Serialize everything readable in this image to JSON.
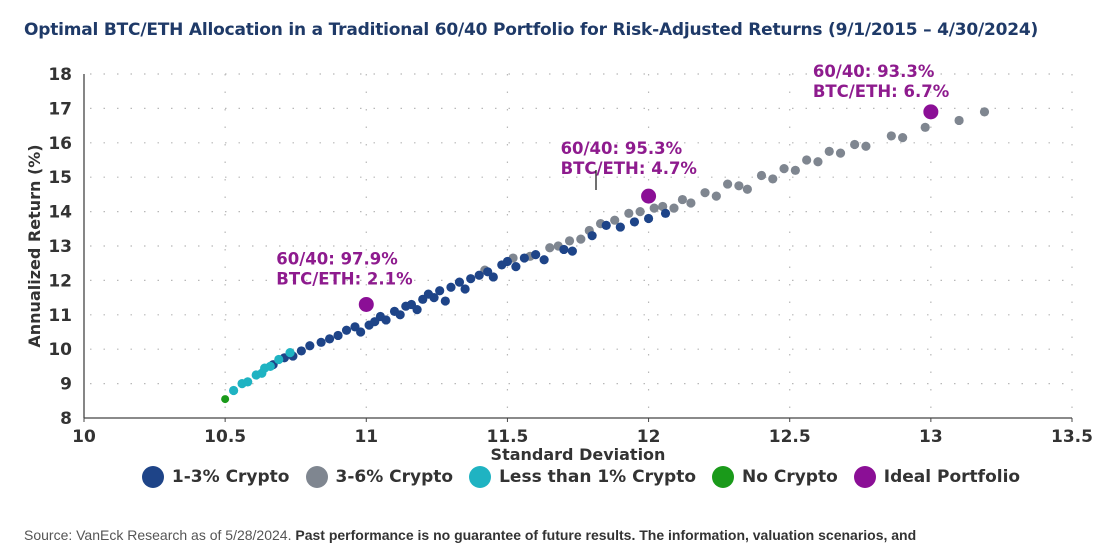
{
  "title": "Optimal BTC/ETH Allocation in a Traditional 60/40 Portfolio for Risk-Adjusted Returns (9/1/2015 – 4/30/2024)",
  "source": {
    "plain": "Source: VanEck Research as of 5/28/2024. ",
    "bold": "Past performance is no guarantee of future results. The information, valuation scenarios, and"
  },
  "chart_data": {
    "type": "scatter",
    "title": "Optimal BTC/ETH Allocation in a Traditional 60/40 Portfolio for Risk-Adjusted Returns (9/1/2015 – 4/30/2024)",
    "xlabel": "Standard Deviation",
    "ylabel": "Annualized Return (%)",
    "xlim": [
      10,
      13.5
    ],
    "ylim": [
      8,
      18
    ],
    "xticks": [
      "10",
      "10.5",
      "11",
      "11.5",
      "12",
      "12.5",
      "13",
      "13.5"
    ],
    "yticks": [
      "8",
      "9",
      "10",
      "11",
      "12",
      "13",
      "14",
      "15",
      "16",
      "17",
      "18"
    ],
    "grid": "dotted",
    "legend_position": "bottom",
    "series": [
      {
        "name": "No Crypto",
        "color": "#1a9a1a",
        "points": [
          [
            10.5,
            8.55
          ]
        ]
      },
      {
        "name": "Less than 1% Crypto",
        "color": "#1fb3c2",
        "points": [
          [
            10.53,
            8.8
          ],
          [
            10.56,
            9.0
          ],
          [
            10.58,
            9.05
          ],
          [
            10.61,
            9.25
          ],
          [
            10.63,
            9.3
          ],
          [
            10.64,
            9.45
          ],
          [
            10.66,
            9.5
          ],
          [
            10.69,
            9.7
          ],
          [
            10.73,
            9.9
          ]
        ]
      },
      {
        "name": "1-3% Crypto",
        "color": "#1e4488",
        "points": [
          [
            10.67,
            9.55
          ],
          [
            10.71,
            9.75
          ],
          [
            10.74,
            9.8
          ],
          [
            10.77,
            9.95
          ],
          [
            10.8,
            10.1
          ],
          [
            10.84,
            10.2
          ],
          [
            10.87,
            10.3
          ],
          [
            10.9,
            10.4
          ],
          [
            10.93,
            10.55
          ],
          [
            10.96,
            10.65
          ],
          [
            10.98,
            10.5
          ],
          [
            11.01,
            10.7
          ],
          [
            11.03,
            10.8
          ],
          [
            11.05,
            10.95
          ],
          [
            11.07,
            10.85
          ],
          [
            11.1,
            11.1
          ],
          [
            11.12,
            11.0
          ],
          [
            11.14,
            11.25
          ],
          [
            11.16,
            11.3
          ],
          [
            11.18,
            11.15
          ],
          [
            11.2,
            11.45
          ],
          [
            11.22,
            11.6
          ],
          [
            11.24,
            11.5
          ],
          [
            11.26,
            11.7
          ],
          [
            11.28,
            11.4
          ],
          [
            11.3,
            11.8
          ],
          [
            11.33,
            11.95
          ],
          [
            11.35,
            11.75
          ],
          [
            11.37,
            12.05
          ],
          [
            11.4,
            12.15
          ],
          [
            11.43,
            12.25
          ],
          [
            11.45,
            12.1
          ],
          [
            11.48,
            12.45
          ],
          [
            11.5,
            12.55
          ],
          [
            11.53,
            12.4
          ],
          [
            11.56,
            12.65
          ],
          [
            11.6,
            12.75
          ],
          [
            11.63,
            12.6
          ],
          [
            11.7,
            12.9
          ],
          [
            11.73,
            12.85
          ],
          [
            11.8,
            13.3
          ],
          [
            11.85,
            13.6
          ],
          [
            11.9,
            13.55
          ],
          [
            11.95,
            13.7
          ],
          [
            12.0,
            13.8
          ],
          [
            12.06,
            13.95
          ]
        ]
      },
      {
        "name": "3-6% Crypto",
        "color": "#7f8690",
        "points": [
          [
            11.42,
            12.3
          ],
          [
            11.52,
            12.65
          ],
          [
            11.58,
            12.7
          ],
          [
            11.65,
            12.95
          ],
          [
            11.68,
            13.0
          ],
          [
            11.72,
            13.15
          ],
          [
            11.76,
            13.2
          ],
          [
            11.79,
            13.45
          ],
          [
            11.83,
            13.65
          ],
          [
            11.88,
            13.75
          ],
          [
            11.93,
            13.95
          ],
          [
            11.97,
            14.0
          ],
          [
            12.02,
            14.1
          ],
          [
            12.05,
            14.15
          ],
          [
            12.09,
            14.1
          ],
          [
            12.12,
            14.35
          ],
          [
            12.15,
            14.25
          ],
          [
            12.2,
            14.55
          ],
          [
            12.24,
            14.45
          ],
          [
            12.28,
            14.8
          ],
          [
            12.32,
            14.75
          ],
          [
            12.35,
            14.65
          ],
          [
            12.4,
            15.05
          ],
          [
            12.44,
            14.95
          ],
          [
            12.48,
            15.25
          ],
          [
            12.52,
            15.2
          ],
          [
            12.56,
            15.5
          ],
          [
            12.6,
            15.45
          ],
          [
            12.64,
            15.75
          ],
          [
            12.68,
            15.7
          ],
          [
            12.73,
            15.95
          ],
          [
            12.77,
            15.9
          ],
          [
            12.86,
            16.2
          ],
          [
            12.9,
            16.15
          ],
          [
            12.98,
            16.45
          ],
          [
            13.1,
            16.65
          ],
          [
            13.19,
            16.9
          ]
        ]
      },
      {
        "name": "Ideal Portfolio",
        "color": "#8b0f96",
        "points": [
          [
            11.0,
            11.3
          ],
          [
            12.0,
            14.45
          ],
          [
            13.0,
            16.9
          ]
        ]
      }
    ],
    "annotations": [
      {
        "line1": "60/40: 97.9%",
        "line2": "BTC/ETH: 2.1%",
        "at": [
          11.0,
          11.3
        ]
      },
      {
        "line1": "60/40: 95.3%",
        "line2": "BTC/ETH: 4.7%",
        "at": [
          12.0,
          14.45
        ]
      },
      {
        "line1": "60/40: 93.3%",
        "line2": "BTC/ETH: 6.7%",
        "at": [
          13.0,
          16.9
        ]
      }
    ]
  }
}
